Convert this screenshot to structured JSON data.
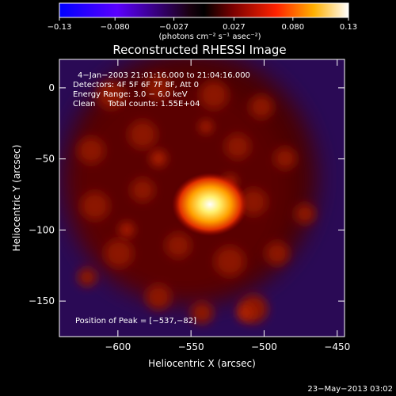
{
  "chart_data": {
    "type": "heatmap",
    "title": "Reconstructed RHESSI Image",
    "colorbar": {
      "colormap": "blue-purple-black-red-yellow-white",
      "min": -0.13,
      "max": 0.13,
      "ticks": [
        "-0.13",
        "-0.080",
        "-0.027",
        "0.027",
        "0.080",
        "0.13"
      ],
      "unit_label": "(photons cm⁻² s⁻¹ asec⁻²)"
    },
    "xlabel": "Heliocentric X (arcsec)",
    "ylabel": "Heliocentric Y (arcsec)",
    "xlim": [
      -640,
      -445
    ],
    "ylim": [
      -175,
      20
    ],
    "xticks": [
      -600,
      -550,
      -500,
      -450
    ],
    "yticks": [
      0,
      -50,
      -100,
      -150
    ],
    "xtick_labels": [
      "−600",
      "−550",
      "−500",
      "−450"
    ],
    "ytick_labels": [
      "0",
      "−50",
      "−100",
      "−150"
    ],
    "peak": {
      "x": -537,
      "y": -82,
      "value": 0.13
    },
    "annotations": [
      "4−Jan−2003 21:01:16.000 to 21:04:16.000",
      "Detectors: 4F 5F 6F 7F 8F, Att 0",
      "Energy Range: 3.0 − 6.0 keV",
      "Clean     Total counts: 1.55E+04"
    ],
    "peak_label": "Position of Peak = [−537,−82]",
    "timestamp": "23−May−2013 03:02"
  }
}
